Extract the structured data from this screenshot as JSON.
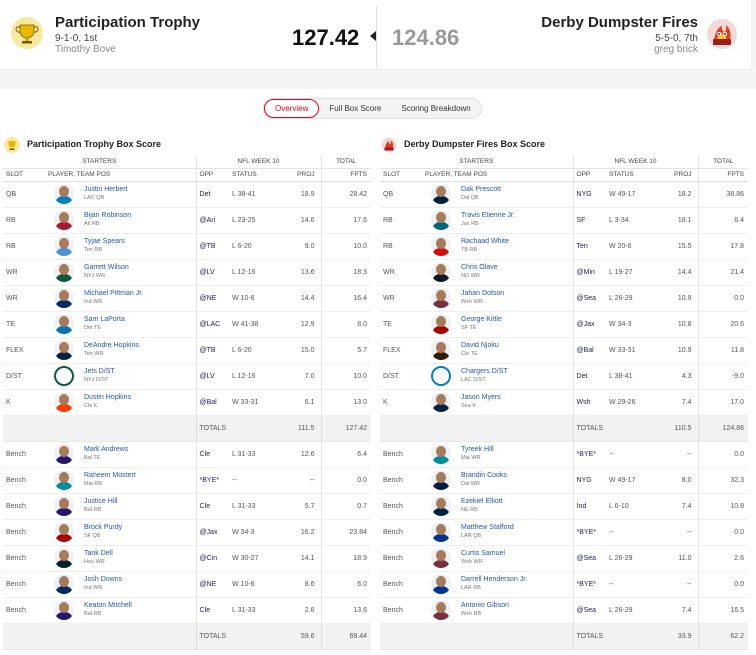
{
  "header": {
    "left": {
      "name": "Participation Trophy",
      "record": "9-1-0, 1st",
      "owner": "Timothy Bove",
      "score": "127.42"
    },
    "right": {
      "name": "Derby Dumpster Fires",
      "record": "5-5-0, 7th",
      "owner": "greg brick",
      "score": "124.86"
    }
  },
  "tabs": [
    {
      "label": "Overview",
      "active": true
    },
    {
      "label": "Full Box Score",
      "active": false
    },
    {
      "label": "Scoring Breakdown",
      "active": false
    }
  ],
  "columns": {
    "starters": "STARTERS",
    "week": "NFL WEEK 10",
    "total": "TOTAL",
    "slot": "SLOT",
    "player": "PLAYER, TEAM POS",
    "opp": "OPP",
    "status": "STATUS",
    "proj": "PROJ",
    "fpts": "FPTS",
    "totals_label": "TOTALS"
  },
  "left_box": {
    "title": "Participation Trophy Box Score",
    "starters": [
      {
        "slot": "QB",
        "name": "Justin Herbert",
        "pos": "LAC QB",
        "opp": "Det",
        "status": "L 38-41",
        "proj": "18.9",
        "fpts": "28.42",
        "color": "#0080c6"
      },
      {
        "slot": "RB",
        "name": "Bijan Robinson",
        "pos": "Atl RB",
        "opp": "@Ari",
        "status": "L 23-25",
        "proj": "14.6",
        "fpts": "17.6",
        "color": "#a71930"
      },
      {
        "slot": "RB",
        "name": "Tyjae Spears",
        "pos": "Ten RB",
        "opp": "@TB",
        "status": "L 6-20",
        "proj": "9.0",
        "fpts": "10.0",
        "color": "#4b92db"
      },
      {
        "slot": "WR",
        "name": "Garrett Wilson",
        "pos": "NYJ WR",
        "opp": "@LV",
        "status": "L 12-16",
        "proj": "13.6",
        "fpts": "18.3",
        "color": "#125740"
      },
      {
        "slot": "WR",
        "name": "Michael Pittman Jr.",
        "pos": "Ind WR",
        "opp": "@NE",
        "status": "W 10-6",
        "proj": "14.4",
        "fpts": "16.4",
        "color": "#002c5f"
      },
      {
        "slot": "TE",
        "name": "Sam LaPorta",
        "pos": "Det TE",
        "opp": "@LAC",
        "status": "W 41-38",
        "proj": "12.9",
        "fpts": "8.0",
        "color": "#0076b6"
      },
      {
        "slot": "FLEX",
        "name": "DeAndre Hopkins",
        "pos": "Ten WR",
        "opp": "@TB",
        "status": "L 6-20",
        "proj": "15.0",
        "fpts": "5.7",
        "color": "#0c2340"
      },
      {
        "slot": "D/ST",
        "name": "Jets D/ST",
        "pos": "NYJ D/ST",
        "opp": "@LV",
        "status": "L 12-16",
        "proj": "7.0",
        "fpts": "10.0",
        "color": "#125740",
        "dst": true
      },
      {
        "slot": "K",
        "name": "Dustin Hopkins",
        "pos": "Cle K",
        "opp": "@Bal",
        "status": "W 33-31",
        "proj": "6.1",
        "fpts": "13.0",
        "color": "#ff3c00"
      }
    ],
    "starters_total": {
      "proj": "111.5",
      "fpts": "127.42"
    },
    "bench": [
      {
        "slot": "Bench",
        "name": "Mark Andrews",
        "pos": "Bal TE",
        "opp": "Cle",
        "status": "L 31-33",
        "proj": "12.6",
        "fpts": "6.4",
        "color": "#241773"
      },
      {
        "slot": "Bench",
        "name": "Raheem Mostert",
        "pos": "Mia RB",
        "opp": "*BYE*",
        "status": "--",
        "proj": "--",
        "fpts": "0.0",
        "color": "#008e97"
      },
      {
        "slot": "Bench",
        "name": "Justice Hill",
        "pos": "Bal RB",
        "opp": "Cle",
        "status": "L 31-33",
        "proj": "5.7",
        "fpts": "0.7",
        "color": "#241773"
      },
      {
        "slot": "Bench",
        "name": "Brock Purdy",
        "pos": "SF QB",
        "opp": "@Jax",
        "status": "W 34-3",
        "proj": "16.2",
        "fpts": "23.84",
        "color": "#aa0000"
      },
      {
        "slot": "Bench",
        "name": "Tank Dell",
        "pos": "Hou WR",
        "opp": "@Cin",
        "status": "W 30-27",
        "proj": "14.1",
        "fpts": "18.9",
        "color": "#03202f"
      },
      {
        "slot": "Bench",
        "name": "Josh Downs",
        "pos": "Ind WR",
        "opp": "@NE",
        "status": "W 10-6",
        "proj": "8.6",
        "fpts": "6.0",
        "color": "#002c5f"
      },
      {
        "slot": "Bench",
        "name": "Keaton Mitchell",
        "pos": "Bal RB",
        "opp": "Cle",
        "status": "L 31-33",
        "proj": "2.6",
        "fpts": "13.6",
        "color": "#241773"
      }
    ],
    "bench_total": {
      "proj": "59.6",
      "fpts": "69.44"
    }
  },
  "right_box": {
    "title": "Derby Dumpster Fires Box Score",
    "starters": [
      {
        "slot": "QB",
        "name": "Dak Prescott",
        "pos": "Dal QB",
        "opp": "NYG",
        "status": "W 49-17",
        "proj": "18.2",
        "fpts": "38.86",
        "color": "#041e42"
      },
      {
        "slot": "RB",
        "name": "Travis Etienne Jr.",
        "pos": "Jax RB",
        "opp": "SF",
        "status": "L 3-34",
        "proj": "18.1",
        "fpts": "6.4",
        "color": "#006778"
      },
      {
        "slot": "RB",
        "name": "Rachaad White",
        "pos": "TB RB",
        "opp": "Ten",
        "status": "W 20-6",
        "proj": "15.5",
        "fpts": "17.8",
        "color": "#d50a0a"
      },
      {
        "slot": "WR",
        "name": "Chris Olave",
        "pos": "NO WR",
        "opp": "@Min",
        "status": "L 19-27",
        "proj": "14.4",
        "fpts": "21.4",
        "color": "#101820"
      },
      {
        "slot": "WR",
        "name": "Jahan Dotson",
        "pos": "Wsh WR",
        "opp": "@Sea",
        "status": "L 26-29",
        "proj": "10.9",
        "fpts": "0.0",
        "color": "#773141"
      },
      {
        "slot": "TE",
        "name": "George Kittle",
        "pos": "SF TE",
        "opp": "@Jax",
        "status": "W 34-3",
        "proj": "10.8",
        "fpts": "20.6",
        "color": "#aa0000"
      },
      {
        "slot": "FLEX",
        "name": "David Njoku",
        "pos": "Cle TE",
        "opp": "@Bal",
        "status": "W 33-31",
        "proj": "10.9",
        "fpts": "11.8",
        "color": "#311d00"
      },
      {
        "slot": "D/ST",
        "name": "Chargers D/ST",
        "pos": "LAC D/ST",
        "opp": "Det",
        "status": "L 38-41",
        "proj": "4.3",
        "fpts": "-9.0",
        "color": "#0080c6",
        "dst": true
      },
      {
        "slot": "K",
        "name": "Jason Myers",
        "pos": "Sea K",
        "opp": "Wsh",
        "status": "W 29-26",
        "proj": "7.4",
        "fpts": "17.0",
        "color": "#002244"
      }
    ],
    "starters_total": {
      "proj": "110.5",
      "fpts": "124.86"
    },
    "bench": [
      {
        "slot": "Bench",
        "name": "Tyreek Hill",
        "pos": "Mia WR",
        "opp": "*BYE*",
        "status": "--",
        "proj": "--",
        "fpts": "0.0",
        "color": "#008e97"
      },
      {
        "slot": "Bench",
        "name": "Brandin Cooks",
        "pos": "Dal WR",
        "opp": "NYG",
        "status": "W 49-17",
        "proj": "8.0",
        "fpts": "32.3",
        "color": "#041e42"
      },
      {
        "slot": "Bench",
        "name": "Ezekiel Elliott",
        "pos": "NE RB",
        "opp": "Ind",
        "status": "L 6-10",
        "proj": "7.4",
        "fpts": "10.8",
        "color": "#002244"
      },
      {
        "slot": "Bench",
        "name": "Matthew Stafford",
        "pos": "LAR QB",
        "opp": "*BYE*",
        "status": "--",
        "proj": "--",
        "fpts": "0.0",
        "color": "#003594"
      },
      {
        "slot": "Bench",
        "name": "Curtis Samuel",
        "pos": "Wsh WR",
        "opp": "@Sea",
        "status": "L 26-29",
        "proj": "11.0",
        "fpts": "2.6",
        "color": "#773141"
      },
      {
        "slot": "Bench",
        "name": "Darrell Henderson Jr.",
        "pos": "LAR RB",
        "opp": "*BYE*",
        "status": "--",
        "proj": "--",
        "fpts": "0.0",
        "color": "#003594"
      },
      {
        "slot": "Bench",
        "name": "Antonio Gibson",
        "pos": "Wsh RB",
        "opp": "@Sea",
        "status": "L 26-29",
        "proj": "7.4",
        "fpts": "16.5",
        "color": "#773141"
      }
    ],
    "bench_total": {
      "proj": "33.9",
      "fpts": "62.2"
    }
  }
}
